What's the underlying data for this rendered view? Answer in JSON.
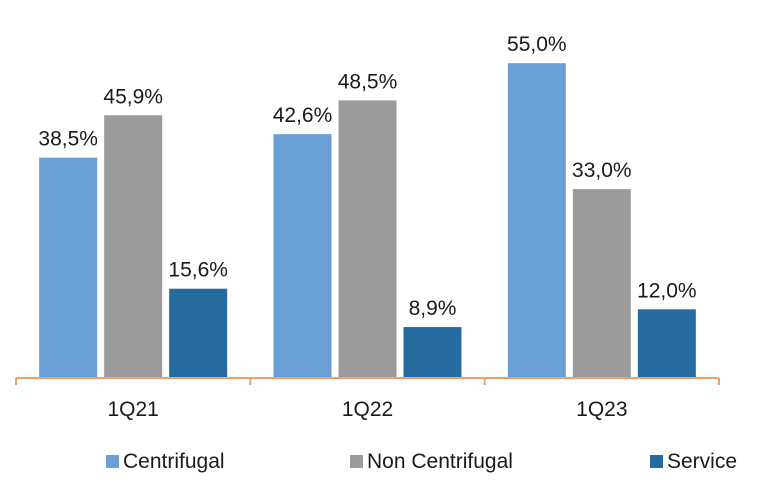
{
  "chart_data": {
    "type": "bar",
    "categories": [
      "1Q21",
      "1Q22",
      "1Q23"
    ],
    "series": [
      {
        "name": "Centrifugal",
        "values": [
          38.5,
          42.6,
          55.0
        ],
        "labels": [
          "38,5%",
          "42,6%",
          "55,0%"
        ],
        "color": "#6a9fd6"
      },
      {
        "name": "Non Centrifugal",
        "values": [
          45.9,
          48.5,
          33.0
        ],
        "labels": [
          "45,9%",
          "48,5%",
          "33,0%"
        ],
        "color": "#9b9b9b"
      },
      {
        "name": "Service",
        "values": [
          15.6,
          8.9,
          12.0
        ],
        "labels": [
          "15,6%",
          "8,9%",
          "12,0%"
        ],
        "color": "#256ba0"
      }
    ],
    "ylim": [
      0,
      58
    ],
    "axis_color": "#f0a066",
    "grid": false,
    "legend_position": "bottom"
  }
}
